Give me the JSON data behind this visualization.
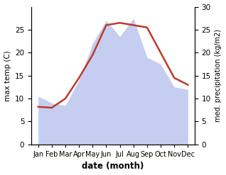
{
  "months": [
    "Jan",
    "Feb",
    "Mar",
    "Apr",
    "May",
    "Jun",
    "Jul",
    "Aug",
    "Sep",
    "Oct",
    "Nov",
    "Dec"
  ],
  "month_indices": [
    1,
    2,
    3,
    4,
    5,
    6,
    7,
    8,
    9,
    10,
    11,
    12
  ],
  "temp_max": [
    8.2,
    8.0,
    10.0,
    14.5,
    19.5,
    26.0,
    26.5,
    26.0,
    25.5,
    20.0,
    14.5,
    13.0
  ],
  "precip": [
    10.5,
    9.0,
    8.5,
    14.0,
    22.0,
    27.0,
    23.5,
    27.5,
    19.0,
    17.5,
    12.5,
    12.0
  ],
  "temp_color": "#c0392b",
  "precip_fill_color": "#c5cdf0",
  "temp_ylim": [
    0,
    30
  ],
  "temp_yticks": [
    0,
    5,
    10,
    15,
    20,
    25
  ],
  "precip_ylim": [
    0,
    30
  ],
  "precip_yticks": [
    0,
    5,
    10,
    15,
    20,
    25,
    30
  ],
  "xlabel": "date (month)",
  "ylabel_left": "max temp (C)",
  "ylabel_right": "med. precipitation (kg/m2)",
  "background_color": "#ffffff",
  "line_width": 1.8,
  "figsize": [
    3.18,
    2.47
  ],
  "dpi": 100
}
